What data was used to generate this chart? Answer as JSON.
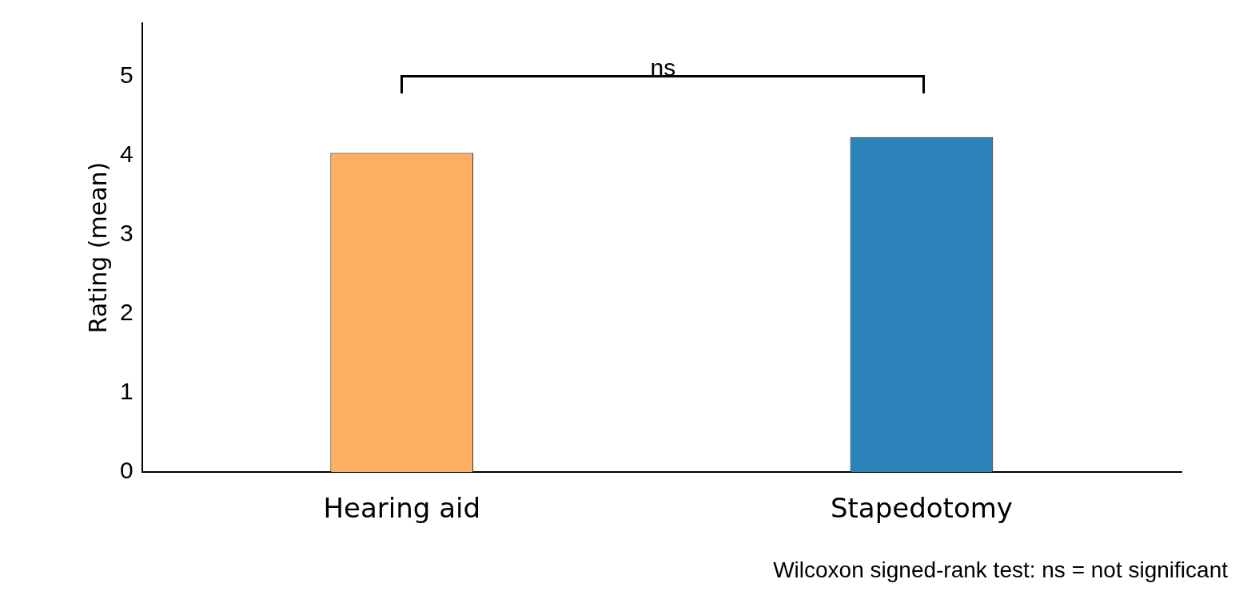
{
  "chart_data": {
    "type": "bar",
    "ylabel": "Rating (mean)",
    "categories": [
      "Hearing aid",
      "Stapedotomy"
    ],
    "values": [
      4.03,
      4.23
    ],
    "colors": [
      "#fdae61",
      "#2c83ba"
    ],
    "ylim": [
      0,
      5.67
    ],
    "yticks": [
      0,
      1,
      2,
      3,
      4,
      5
    ],
    "grid": false,
    "legend": false,
    "annotations": [
      "ns",
      "Wilcoxon signed-rank test: ns = not significant"
    ]
  }
}
